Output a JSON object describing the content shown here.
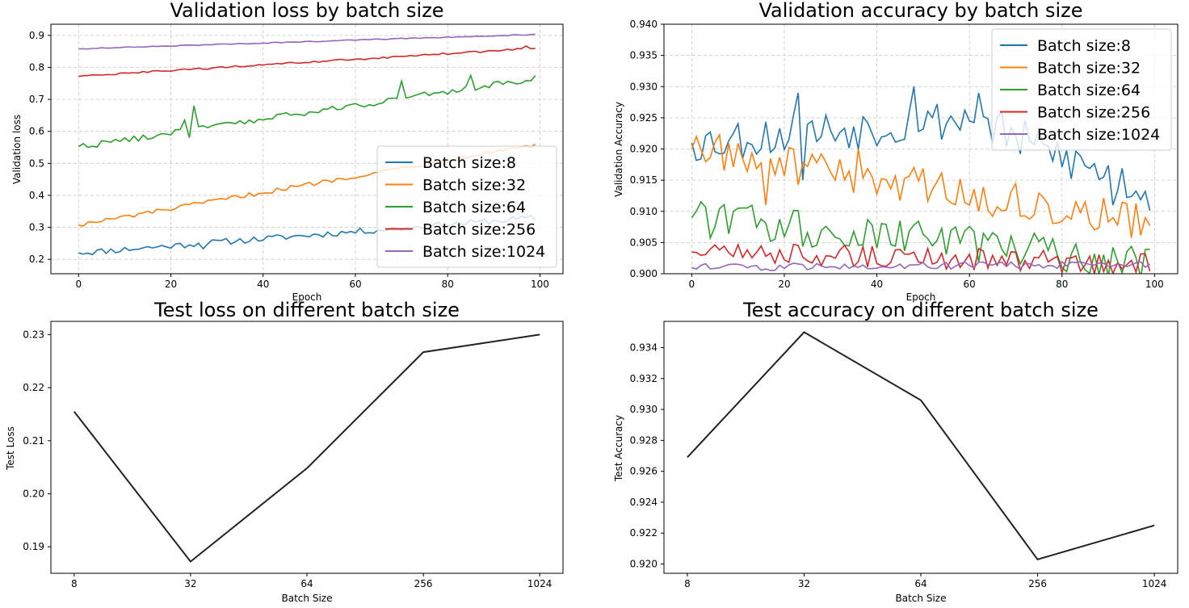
{
  "colors": {
    "Batch size:8": "#1f77b4",
    "Batch size:32": "#ff7f0e",
    "Batch size:64": "#2ca02c",
    "Batch size:256": "#d62728",
    "Batch size:1024": "#9467bd",
    "test": "#222222"
  },
  "chart_data": [
    {
      "id": "val_loss",
      "type": "line",
      "title": "Validation loss by batch size",
      "xlabel": "Epoch",
      "ylabel": "Validation loss",
      "xlim": [
        -6,
        105
      ],
      "ylim": [
        0.155,
        0.935
      ],
      "xticks": [
        0,
        20,
        40,
        60,
        80,
        100
      ],
      "yticks": [
        0.2,
        0.3,
        0.4,
        0.5,
        0.6,
        0.7,
        0.8,
        0.9
      ],
      "ytick_decimals": 1,
      "grid": true,
      "legend": "lower right",
      "series": [
        {
          "name": "Batch size:8",
          "start": 0.22,
          "end": 0.33,
          "noise": 0.01,
          "spikes": [
            [
              24,
              0.245
            ],
            [
              27,
              0.233
            ],
            [
              70,
              0.29
            ],
            [
              96,
              0.335
            ]
          ]
        },
        {
          "name": "Batch size:32",
          "start": 0.307,
          "end": 0.56,
          "noise": 0.007,
          "spikes": [
            [
              68,
              0.482
            ],
            [
              99,
              0.56
            ]
          ]
        },
        {
          "name": "Batch size:64",
          "start": 0.552,
          "end": 0.765,
          "noise": 0.01,
          "spikes": [
            [
              23,
              0.635
            ],
            [
              24,
              0.58
            ],
            [
              25,
              0.68
            ],
            [
              70,
              0.757
            ],
            [
              85,
              0.775
            ],
            [
              87,
              0.735
            ]
          ]
        },
        {
          "name": "Batch size:256",
          "start": 0.772,
          "end": 0.86,
          "noise": 0.003,
          "spikes": [
            [
              97,
              0.867
            ]
          ]
        },
        {
          "name": "Batch size:1024",
          "start": 0.858,
          "end": 0.903,
          "noise": 0.0015,
          "spikes": []
        }
      ]
    },
    {
      "id": "val_acc",
      "type": "line",
      "title": "Validation accuracy by batch size",
      "xlabel": "Epoch",
      "ylabel": "Validation Accuracy",
      "xlim": [
        -6,
        105
      ],
      "ylim": [
        0.9,
        0.94
      ],
      "xticks": [
        0,
        20,
        40,
        60,
        80,
        100
      ],
      "yticks": [
        0.9,
        0.905,
        0.91,
        0.915,
        0.92,
        0.925,
        0.93,
        0.935,
        0.94
      ],
      "ytick_decimals": 3,
      "grid": true,
      "legend": "upper right",
      "series": [
        {
          "name": "Batch size:8",
          "start": 0.921,
          "end": 0.913,
          "mid": 0.925,
          "noise": 0.0035,
          "spikes": [
            [
              23,
              0.929
            ],
            [
              24,
              0.915
            ],
            [
              48,
              0.93
            ],
            [
              62,
              0.929
            ],
            [
              91,
              0.911
            ]
          ]
        },
        {
          "name": "Batch size:32",
          "start": 0.92,
          "end": 0.908,
          "noise": 0.003,
          "spikes": [
            [
              1,
              0.922
            ],
            [
              16,
              0.911
            ],
            [
              36,
              0.92
            ]
          ]
        },
        {
          "name": "Batch size:64",
          "start": 0.909,
          "end": 0.902,
          "noise": 0.003,
          "spikes": []
        },
        {
          "name": "Batch size:256",
          "start": 0.9035,
          "end": 0.9015,
          "noise": 0.0018,
          "spikes": []
        },
        {
          "name": "Batch size:1024",
          "start": 0.901,
          "end": 0.9015,
          "noise": 0.0006,
          "spikes": []
        }
      ]
    },
    {
      "id": "test_loss",
      "type": "line",
      "title": "Test loss on different batch size",
      "xlabel": "Batch Size",
      "ylabel": "Test Loss",
      "categories": [
        "8",
        "32",
        "64",
        "256",
        "1024"
      ],
      "values": [
        0.2155,
        0.1872,
        0.2048,
        0.2267,
        0.23
      ],
      "ylim": [
        0.185,
        0.2325
      ],
      "yticks": [
        0.19,
        0.2,
        0.21,
        0.22,
        0.23
      ],
      "ytick_decimals": 2,
      "grid": false
    },
    {
      "id": "test_acc",
      "type": "line",
      "title": "Test accuracy on different batch size",
      "xlabel": "Batch Size",
      "ylabel": "Test Accuracy",
      "categories": [
        "8",
        "32",
        "64",
        "256",
        "1024"
      ],
      "values": [
        0.9269,
        0.935,
        0.9306,
        0.9203,
        0.9225
      ],
      "ylim": [
        0.9194,
        0.9357
      ],
      "yticks": [
        0.92,
        0.922,
        0.924,
        0.926,
        0.928,
        0.93,
        0.932,
        0.934
      ],
      "ytick_decimals": 3,
      "grid": false
    }
  ]
}
